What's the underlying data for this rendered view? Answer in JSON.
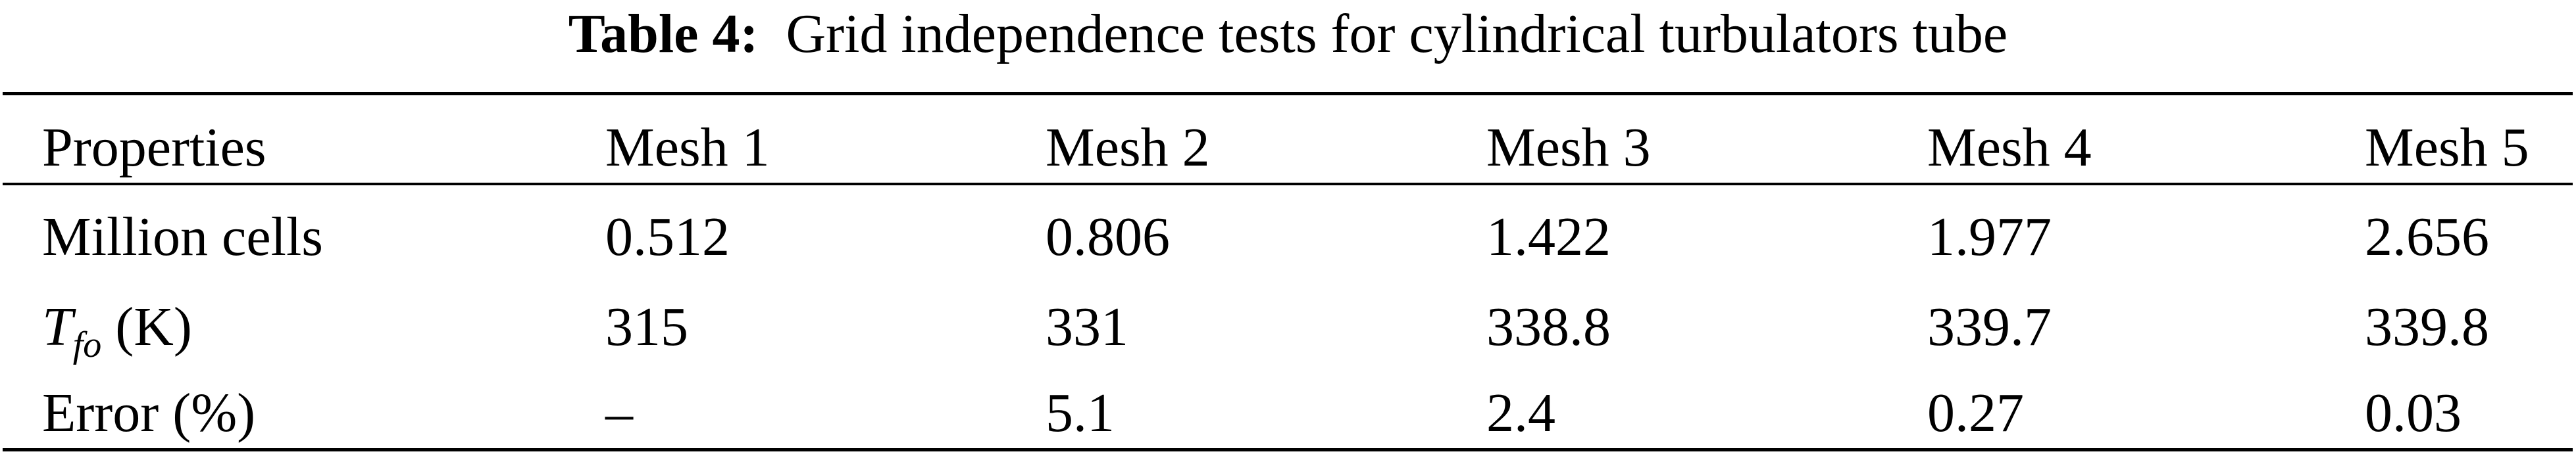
{
  "table": {
    "label": "Table 4:",
    "caption": "Grid independence tests for cylindrical turbulators tube",
    "headers": [
      "Properties",
      "Mesh 1",
      "Mesh 2",
      "Mesh 3",
      "Mesh 4",
      "Mesh 5"
    ],
    "rows": [
      {
        "property": "Million cells",
        "values": [
          "0.512",
          "0.806",
          "1.422",
          "1.977",
          "2.656"
        ]
      },
      {
        "property_symbol": "T",
        "property_subscript": "fo",
        "property_unit": "(K)",
        "values": [
          "315",
          "331",
          "338.8",
          "339.7",
          "339.8"
        ]
      },
      {
        "property": "Error (%)",
        "values": [
          "–",
          "5.1",
          "2.4",
          "0.27",
          "0.03"
        ]
      }
    ]
  }
}
